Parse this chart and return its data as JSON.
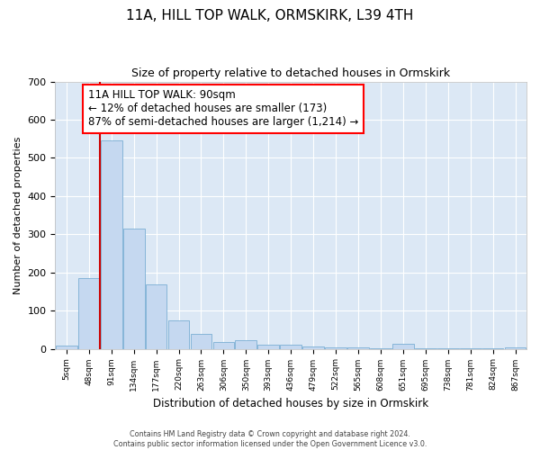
{
  "title": "11A, HILL TOP WALK, ORMSKIRK, L39 4TH",
  "subtitle": "Size of property relative to detached houses in Ormskirk",
  "xlabel": "Distribution of detached houses by size in Ormskirk",
  "ylabel": "Number of detached properties",
  "categories": [
    "5sqm",
    "48sqm",
    "91sqm",
    "134sqm",
    "177sqm",
    "220sqm",
    "263sqm",
    "306sqm",
    "350sqm",
    "393sqm",
    "436sqm",
    "479sqm",
    "522sqm",
    "565sqm",
    "608sqm",
    "651sqm",
    "695sqm",
    "738sqm",
    "781sqm",
    "824sqm",
    "867sqm"
  ],
  "values": [
    8,
    185,
    545,
    315,
    168,
    75,
    40,
    17,
    22,
    11,
    10,
    5,
    3,
    3,
    2,
    13,
    2,
    2,
    1,
    1,
    4
  ],
  "bar_color": "#c5d8f0",
  "bar_edgecolor": "#7aaed4",
  "redline_index": 2,
  "annotation_line1": "11A HILL TOP WALK: 90sqm",
  "annotation_line2": "← 12% of detached houses are smaller (173)",
  "annotation_line3": "87% of semi-detached houses are larger (1,214) →",
  "redline_color": "#cc0000",
  "ylim": [
    0,
    700
  ],
  "yticks": [
    0,
    100,
    200,
    300,
    400,
    500,
    600,
    700
  ],
  "footer_line1": "Contains HM Land Registry data © Crown copyright and database right 2024.",
  "footer_line2": "Contains public sector information licensed under the Open Government Licence v3.0.",
  "plot_bg_color": "#dce8f5"
}
